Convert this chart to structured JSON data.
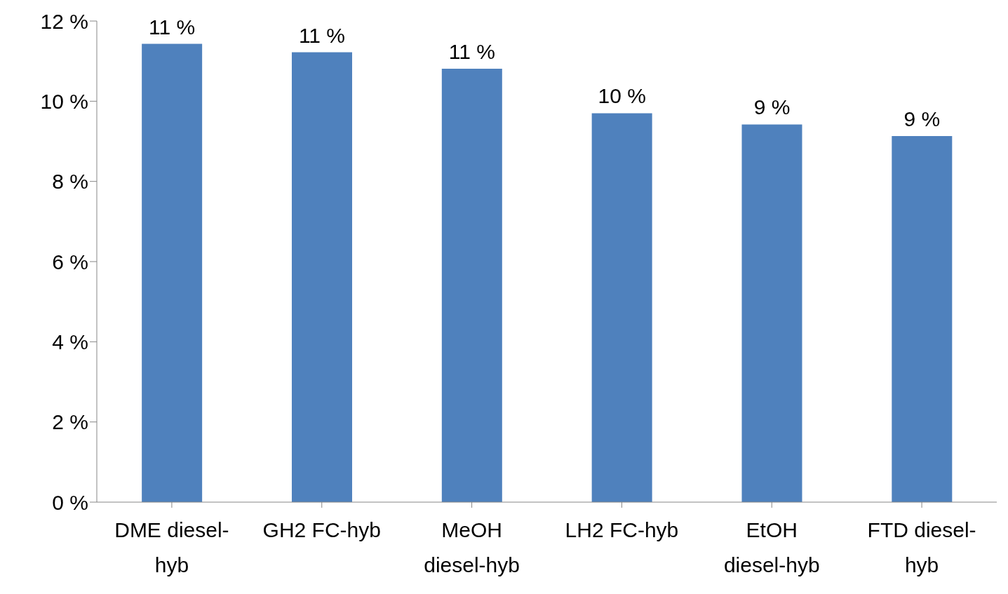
{
  "chart_data": {
    "type": "bar",
    "categories": [
      "DME diesel-hyb",
      "GH2 FC-hyb",
      "MeOH diesel-hyb",
      "LH2 FC-hyb",
      "EtOH diesel-hyb",
      "FTD diesel-hyb"
    ],
    "values": [
      11.43,
      11.22,
      10.81,
      9.7,
      9.42,
      9.13
    ],
    "value_labels": [
      "11 %",
      "11 %",
      "11 %",
      "10 %",
      "9 %",
      "9 %"
    ],
    "color": "#4f81bd",
    "ylim": [
      0,
      12
    ],
    "yticks": [
      {
        "value": 0,
        "label": "0 %"
      },
      {
        "value": 2,
        "label": "2 %"
      },
      {
        "value": 4,
        "label": "4 %"
      },
      {
        "value": 6,
        "label": "6 %"
      },
      {
        "value": 8,
        "label": "8 %"
      },
      {
        "value": 10,
        "label": "10 %"
      },
      {
        "value": 12,
        "label": "12 %"
      }
    ],
    "grid": false
  }
}
